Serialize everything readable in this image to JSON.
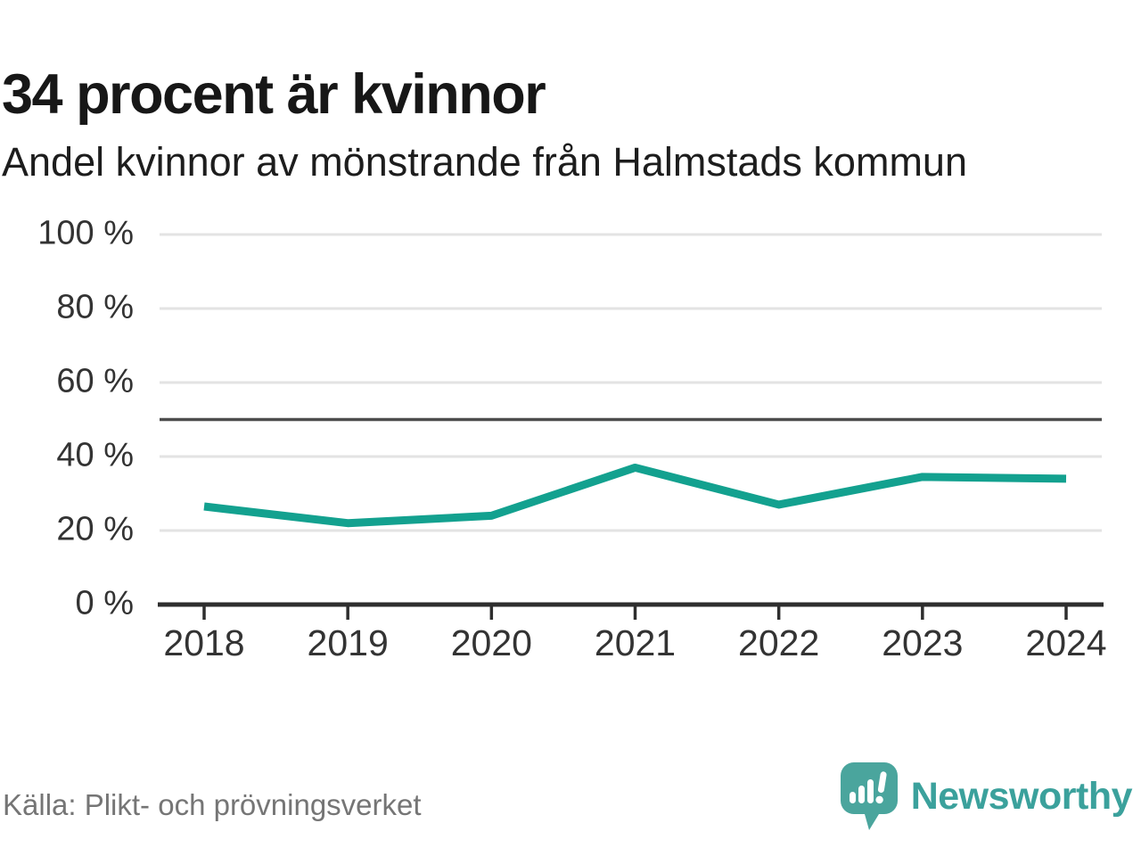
{
  "header": {
    "title": "34 procent är kvinnor",
    "subtitle": "Andel kvinnor av mönstrande från Halmstads kommun"
  },
  "footer": {
    "source": "Källa: Plikt- och prövningsverket",
    "brand_name": "Newsworthy",
    "brand_icon": "speech-bubble-bar-chart"
  },
  "chart_data": {
    "type": "line",
    "title": "34 procent är kvinnor",
    "subtitle": "Andel kvinnor av mönstrande från Halmstads kommun",
    "x": [
      "2018",
      "2019",
      "2020",
      "2021",
      "2022",
      "2023",
      "2024"
    ],
    "series": [
      {
        "name": "Andel kvinnor",
        "values": [
          26.5,
          22,
          24,
          37,
          27,
          34.5,
          34
        ]
      }
    ],
    "unit": "%",
    "ylim": [
      0,
      100
    ],
    "yticks": [
      0,
      20,
      40,
      60,
      80,
      100
    ],
    "ytick_suffix": " %",
    "reference_line": 50,
    "grid": true,
    "legend": "none"
  },
  "colors": {
    "line": "#13a18f",
    "grid": "#e3e3e3",
    "reference": "#4d4d4d",
    "axis": "#2e2e2e",
    "tick_text": "#333333",
    "logo_bubble": "#4aa59d",
    "logo_glyph": "#ffffff"
  }
}
